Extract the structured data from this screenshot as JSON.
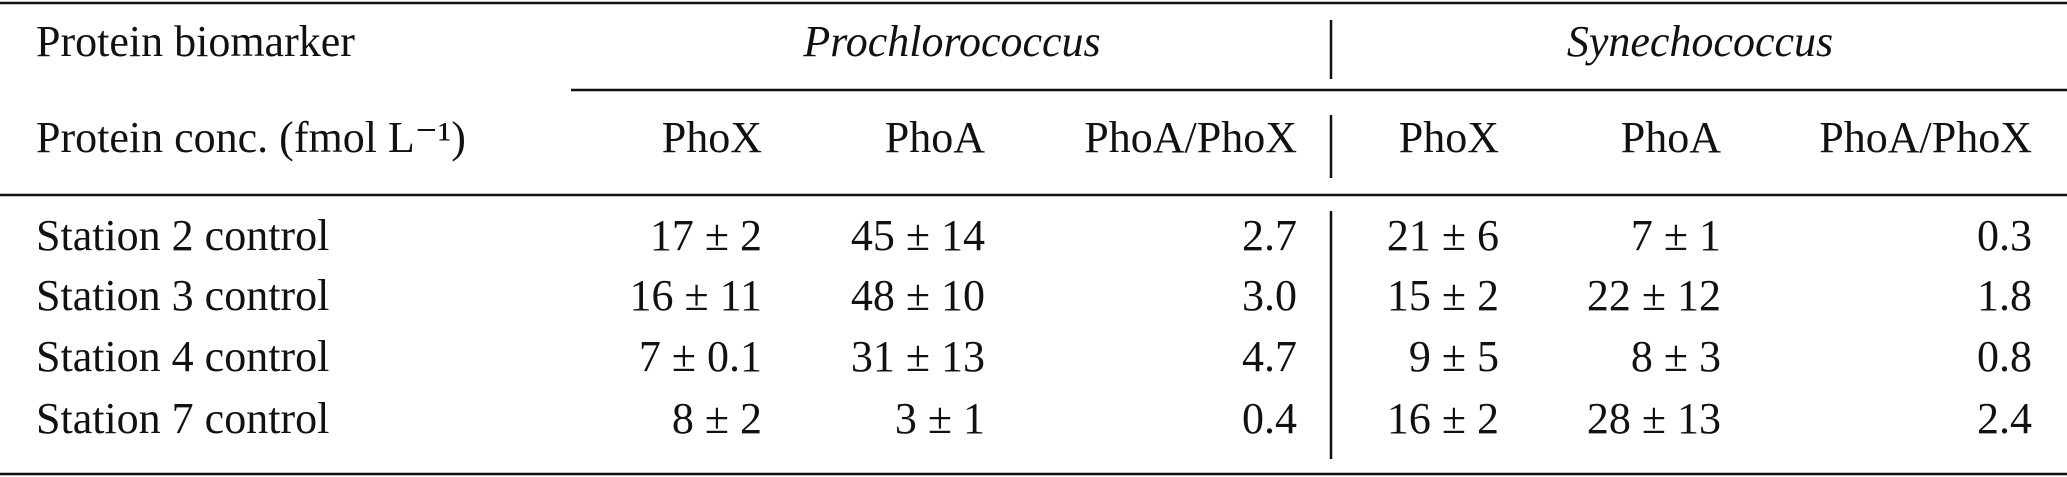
{
  "table": {
    "corner_label": "Protein biomarker",
    "unit_label": "Protein conc. (fmol L⁻¹)",
    "groups": [
      "Prochlorococcus",
      "Synechococcus"
    ],
    "columns": [
      "PhoX",
      "PhoA",
      "PhoA/PhoX",
      "PhoX",
      "PhoA",
      "PhoA/PhoX"
    ],
    "rows": [
      [
        "Station 2 control",
        "17 ± 2",
        "45 ± 14",
        "2.7",
        "21 ± 6",
        "7 ± 1",
        "0.3"
      ],
      [
        "Station 3 control",
        "16 ± 11",
        "48 ± 10",
        "3.0",
        "15 ± 2",
        "22 ± 12",
        "1.8"
      ],
      [
        "Station 4 control",
        "7 ± 0.1",
        "31 ± 13",
        "4.7",
        "9 ± 5",
        "8 ± 3",
        "0.8"
      ],
      [
        "Station 7 control",
        "8 ± 2",
        "3 ± 1",
        "0.4",
        "16 ± 2",
        "28 ± 13",
        "2.4"
      ]
    ]
  }
}
